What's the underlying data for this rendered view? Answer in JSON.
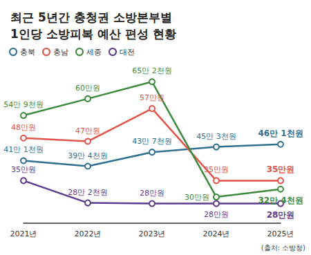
{
  "chart_data": {
    "type": "line",
    "title": "최근 5년간 충청권 소방본부별\n1인당 소방피복 예산 편성 현황",
    "source": "(출처: 소방청)",
    "categories": [
      "2021년",
      "2022년",
      "2023년",
      "2024년",
      "2025년"
    ],
    "series": [
      {
        "name": "충북",
        "color": "#2f6f8f",
        "values": [
          411000,
          394000,
          437000,
          453000,
          461000
        ],
        "value_labels": [
          "41만 1천원",
          "39만 4천원",
          "43만 7천원",
          "45만 3천원",
          "46만 1천원"
        ]
      },
      {
        "name": "충남",
        "color": "#e0544a",
        "values": [
          480000,
          470000,
          570000,
          350000,
          350000
        ],
        "value_labels": [
          "48만원",
          "47만원",
          "57만원",
          "35만원",
          "35만원"
        ]
      },
      {
        "name": "세종",
        "color": "#3c8a3c",
        "values": [
          549000,
          600000,
          652000,
          300000,
          324000
        ],
        "value_labels": [
          "54만 9천원",
          "60만원",
          "65만 2천원",
          "30만원",
          "32만 4천원"
        ]
      },
      {
        "name": "대전",
        "color": "#5c3a8e",
        "values": [
          350000,
          282000,
          280000,
          280000,
          280000
        ],
        "value_labels": [
          "35만원",
          "28만 2천원",
          "28만원",
          "28만원",
          "28만원"
        ]
      }
    ],
    "ylim": [
      220000,
      680000
    ],
    "grid": false,
    "legend": "top-left",
    "data_labels": true,
    "tick_labels": "x",
    "marker": "emptyCircle"
  }
}
